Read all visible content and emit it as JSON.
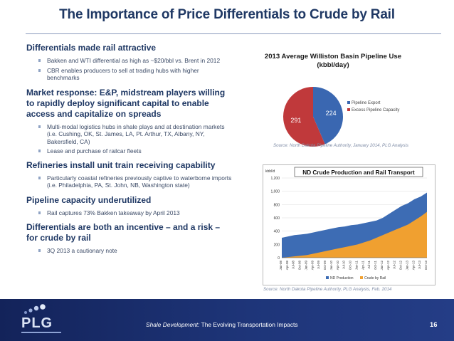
{
  "slide": {
    "title": "The Importance of Price Differentials to Crude by Rail"
  },
  "sections": [
    {
      "heading": "Differentials made rail attractive",
      "bullets": [
        "Bakken and WTI differential as high as ~$20/bbl vs. Brent in 2012",
        "CBR enables producers to sell at trading hubs with higher benchmarks"
      ]
    },
    {
      "heading": "Market response:  E&P, midstream players willing to rapidly deploy significant capital to enable access and capitalize on spreads",
      "bullets": [
        "Multi-modal logistics hubs in shale plays and at destination markets (i.e. Cushing, OK, St. James, LA, Pt. Arthur, TX, Albany, NY, Bakersfield, CA)",
        "Lease and purchase of railcar fleets"
      ]
    },
    {
      "heading": "Refineries install unit train receiving capability",
      "bullets": [
        "Particularly coastal refineries previously captive to waterborne imports (i.e. Philadelphia, PA, St. John, NB, Washington state)"
      ]
    },
    {
      "heading": "Pipeline capacity underutilized",
      "bullets": [
        "Rail captures 73% Bakken takeaway by April 2013"
      ]
    },
    {
      "heading": "Differentials are both an incentive – and a risk – for crude by rail",
      "bullets": [
        "3Q 2013 a cautionary note"
      ]
    }
  ],
  "pie_source": "Source: North Dakota Pipeline Authority, January 2014, PLG Analysis",
  "area_source": "Source: North Dakota Pipeline Authority, PLG Analysis, Feb. 2014",
  "footer": {
    "logo": "PLG",
    "text_italic": "Shale Development:",
    "text_rest": " The Evolving Transportation Impacts",
    "page_number": "16"
  },
  "colors": {
    "title": "#1f3864",
    "pie_export": "#3a67b1",
    "pie_excess": "#c0393b",
    "area_nd": "#3d6cb4",
    "area_rail": "#f0a030",
    "footer_bg": "#1a2d6b"
  },
  "chart_data": [
    {
      "type": "pie",
      "title": "2013 Average Williston Basin Pipeline Use (kbbl/day)",
      "labels": [
        "Pipeline Export",
        "Excess Pipeline Capacity"
      ],
      "values": [
        224,
        291
      ],
      "legend": "right"
    },
    {
      "type": "area",
      "title": "ND Crude Production and Rail Transport",
      "ylabel": "kbbl/d",
      "ylim": [
        0,
        1200
      ],
      "yticks": [
        0,
        200,
        400,
        600,
        800,
        1000,
        1200
      ],
      "x": [
        "Jan-08",
        "Apr-08",
        "Jul-08",
        "Oct-08",
        "Jan-09",
        "Apr-09",
        "Jul-09",
        "Oct-09",
        "Jan-10",
        "Apr-10",
        "Jul-10",
        "Oct-10",
        "Jan-11",
        "Apr-11",
        "Jul-11",
        "Oct-11",
        "Jan-12",
        "Apr-12",
        "Jul-12",
        "Oct-12",
        "Jan-13",
        "Apr-13",
        "Jul-13",
        "Oct-13"
      ],
      "series": [
        {
          "name": "ND Production",
          "values": [
            300,
            320,
            340,
            350,
            360,
            380,
            400,
            420,
            440,
            460,
            470,
            490,
            500,
            520,
            540,
            560,
            600,
            660,
            720,
            780,
            820,
            880,
            920,
            980
          ]
        },
        {
          "name": "Crude by Rail",
          "values": [
            0,
            10,
            20,
            30,
            40,
            60,
            80,
            100,
            120,
            140,
            160,
            180,
            200,
            230,
            260,
            300,
            340,
            380,
            420,
            460,
            500,
            560,
            620,
            690
          ]
        }
      ],
      "legend": "bottom"
    }
  ]
}
